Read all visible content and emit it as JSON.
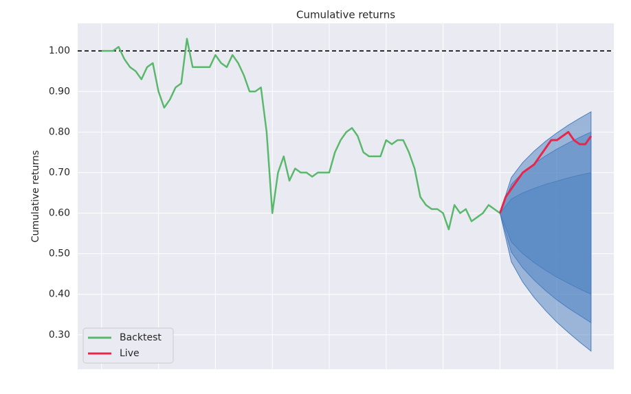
{
  "chart_data": {
    "type": "line",
    "title": "Cumulative returns",
    "y_label": "Cumulative returns",
    "xlim": [
      -4.2,
      90
    ],
    "xticks": [
      0,
      10,
      20,
      30,
      40,
      50,
      60,
      70,
      80
    ],
    "ylim": [
      0.215,
      1.068
    ],
    "yticks": [
      {
        "value": 0.3,
        "label": "0.30"
      },
      {
        "value": 0.4,
        "label": "0.40"
      },
      {
        "value": 0.5,
        "label": "0.50"
      },
      {
        "value": 0.6,
        "label": "0.60"
      },
      {
        "value": 0.7,
        "label": "0.70"
      },
      {
        "value": 0.8,
        "label": "0.80"
      },
      {
        "value": 0.9,
        "label": "0.90"
      },
      {
        "value": 1.0,
        "label": "1.00"
      }
    ],
    "grid": true,
    "hline": 1.0,
    "legend": "lower left",
    "series": [
      {
        "name": "Backtest",
        "color": "#5ab86c",
        "values": [
          1.0,
          1.0,
          1.0,
          1.01,
          0.98,
          0.96,
          0.95,
          0.93,
          0.96,
          0.97,
          0.9,
          0.86,
          0.88,
          0.91,
          0.92,
          1.03,
          0.96,
          0.96,
          0.96,
          0.96,
          0.99,
          0.97,
          0.96,
          0.99,
          0.97,
          0.94,
          0.9,
          0.9,
          0.91,
          0.8,
          0.6,
          0.7,
          0.74,
          0.68,
          0.71,
          0.7,
          0.7,
          0.69,
          0.7,
          0.7,
          0.7,
          0.75,
          0.78,
          0.8,
          0.81,
          0.79,
          0.75,
          0.74,
          0.74,
          0.74,
          0.78,
          0.77,
          0.78,
          0.78,
          0.75,
          0.71,
          0.64,
          0.62,
          0.61,
          0.61,
          0.6,
          0.56,
          0.62,
          0.6,
          0.61,
          0.58,
          0.59,
          0.6,
          0.62,
          0.61,
          0.6,
          null,
          null,
          null,
          null,
          null,
          null,
          null,
          null,
          null,
          null,
          null,
          null,
          null,
          null,
          null,
          null
        ]
      },
      {
        "name": "Live",
        "color": "#e8264a",
        "values": [
          null,
          null,
          null,
          null,
          null,
          null,
          null,
          null,
          null,
          null,
          null,
          null,
          null,
          null,
          null,
          null,
          null,
          null,
          null,
          null,
          null,
          null,
          null,
          null,
          null,
          null,
          null,
          null,
          null,
          null,
          null,
          null,
          null,
          null,
          null,
          null,
          null,
          null,
          null,
          null,
          null,
          null,
          null,
          null,
          null,
          null,
          null,
          null,
          null,
          null,
          null,
          null,
          null,
          null,
          null,
          null,
          null,
          null,
          null,
          null,
          null,
          null,
          null,
          null,
          null,
          null,
          null,
          null,
          null,
          null,
          0.6,
          0.64,
          0.66,
          0.68,
          0.7,
          0.71,
          0.72,
          0.74,
          0.76,
          0.78,
          0.78,
          0.79,
          0.8,
          0.78,
          0.77,
          0.77,
          0.79
        ]
      }
    ],
    "bands": [
      {
        "color": "#4c7fbf",
        "x": [
          70,
          72,
          74,
          76,
          78,
          80,
          82,
          84,
          86
        ],
        "upper": [
          0.6,
          0.688,
          0.725,
          0.753,
          0.777,
          0.798,
          0.817,
          0.834,
          0.85
        ],
        "lower": [
          0.6,
          0.48,
          0.43,
          0.392,
          0.36,
          0.331,
          0.306,
          0.282,
          0.26
        ]
      },
      {
        "color": "#4c7fbf",
        "x": [
          70,
          72,
          74,
          76,
          78,
          80,
          82,
          84,
          86
        ],
        "upper": [
          0.6,
          0.671,
          0.7,
          0.722,
          0.741,
          0.758,
          0.773,
          0.787,
          0.8
        ],
        "lower": [
          0.6,
          0.504,
          0.465,
          0.435,
          0.409,
          0.386,
          0.366,
          0.348,
          0.33
        ]
      },
      {
        "color": "#4c7fbf",
        "x": [
          70,
          72,
          74,
          76,
          78,
          80,
          82,
          84,
          86
        ],
        "upper": [
          0.6,
          0.635,
          0.65,
          0.661,
          0.671,
          0.679,
          0.687,
          0.694,
          0.7
        ],
        "lower": [
          0.6,
          0.529,
          0.5,
          0.478,
          0.459,
          0.442,
          0.427,
          0.413,
          0.4
        ]
      }
    ]
  }
}
